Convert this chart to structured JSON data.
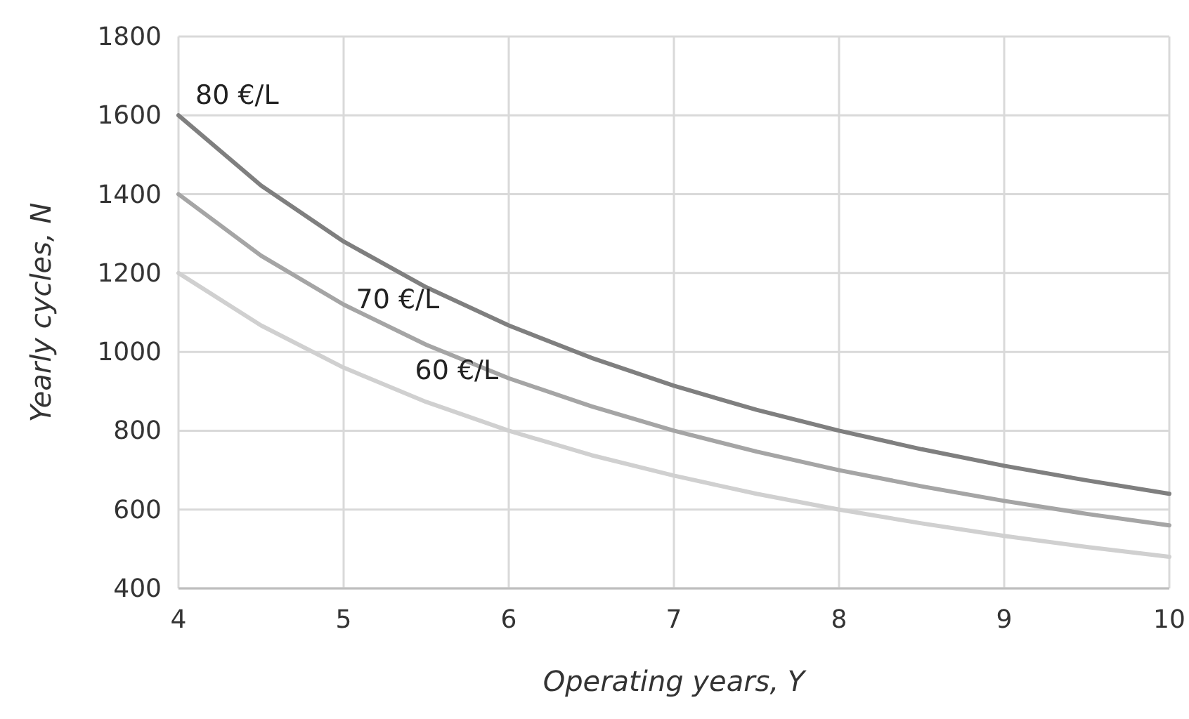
{
  "chart_data": {
    "type": "line",
    "xlabel": "Operating years, Y",
    "ylabel": "Yearly cycles, N",
    "x": [
      4,
      4.5,
      5,
      5.5,
      6,
      6.5,
      7,
      7.5,
      8,
      8.5,
      9,
      9.5,
      10
    ],
    "series": [
      {
        "name": "80 €/L",
        "color": "#7f7f7f",
        "values": [
          1600,
          1422,
          1280,
          1164,
          1067,
          985,
          914,
          853,
          800,
          753,
          711,
          674,
          640
        ]
      },
      {
        "name": "70 €/L",
        "color": "#a5a5a5",
        "values": [
          1400,
          1244,
          1120,
          1018,
          933,
          862,
          800,
          747,
          700,
          659,
          622,
          589,
          560
        ]
      },
      {
        "name": "60 €/L",
        "color": "#d0d0d0",
        "values": [
          1200,
          1067,
          960,
          873,
          800,
          738,
          686,
          640,
          600,
          565,
          533,
          505,
          480
        ]
      }
    ],
    "xlim": [
      4,
      10
    ],
    "xticks": [
      4,
      5,
      6,
      7,
      8,
      9,
      10
    ],
    "ylim": [
      400,
      1800
    ],
    "yticks": [
      400,
      600,
      800,
      1000,
      1200,
      1400,
      1600,
      1800
    ],
    "grid": true,
    "marker": "none",
    "line_style": "solid"
  }
}
